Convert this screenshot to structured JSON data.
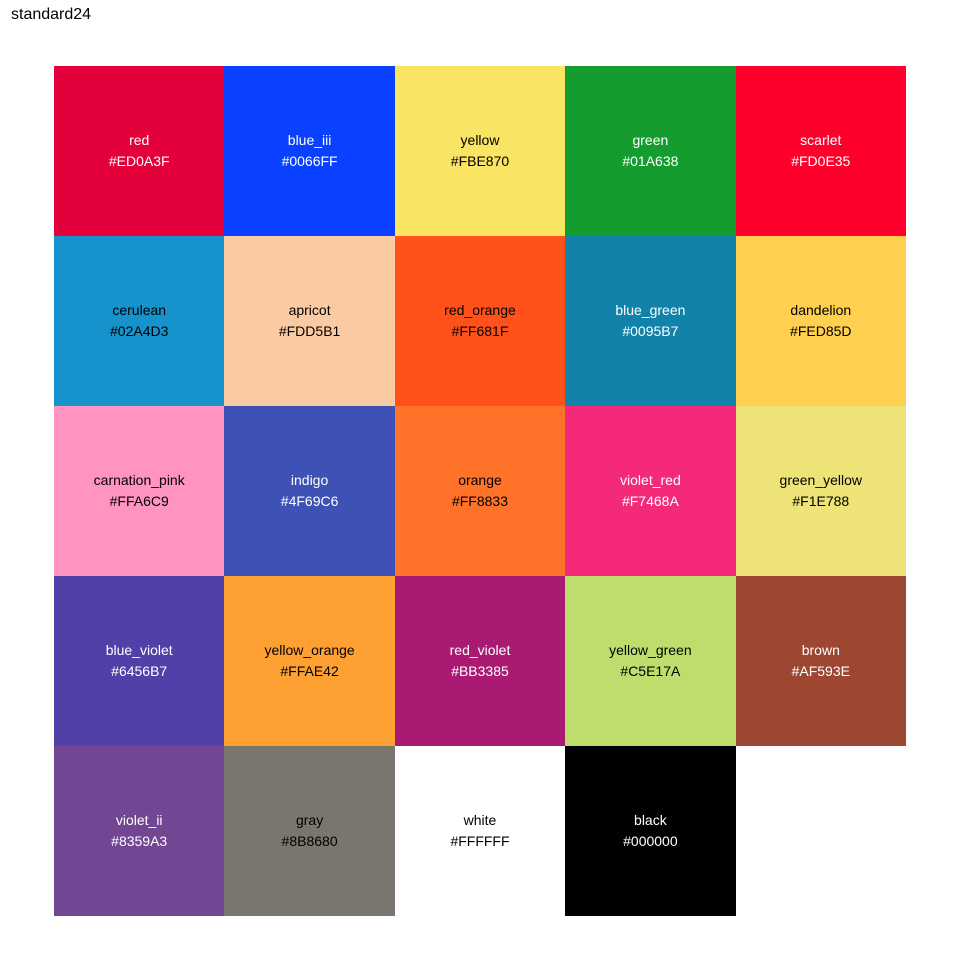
{
  "title": "standard24",
  "chart_data": {
    "type": "table",
    "title": "standard24",
    "columns": 5,
    "tiles": [
      {
        "name": "red",
        "hex": "#ED0A3F",
        "fill": "#E4003A",
        "text": "#FFFFFF"
      },
      {
        "name": "blue_iii",
        "hex": "#0066FF",
        "fill": "#0A40FF",
        "text": "#FFFFFF"
      },
      {
        "name": "yellow",
        "hex": "#FBE870",
        "fill": "#F9E464",
        "text": "#000000"
      },
      {
        "name": "green",
        "hex": "#01A638",
        "fill": "#159C2E",
        "text": "#FFFFFF"
      },
      {
        "name": "scarlet",
        "hex": "#FD0E35",
        "fill": "#FF002C",
        "text": "#FFFFFF"
      },
      {
        "name": "cerulean",
        "hex": "#02A4D3",
        "fill": "#1692CC",
        "text": "#000000"
      },
      {
        "name": "apricot",
        "hex": "#FDD5B1",
        "fill": "#FACBA3",
        "text": "#000000"
      },
      {
        "name": "red_orange",
        "hex": "#FF681F",
        "fill": "#FF5119",
        "text": "#000000"
      },
      {
        "name": "blue_green",
        "hex": "#0095B7",
        "fill": "#1183AA",
        "text": "#FFFFFF"
      },
      {
        "name": "dandelion",
        "hex": "#FED85D",
        "fill": "#FFD04F",
        "text": "#000000"
      },
      {
        "name": "carnation_pink",
        "hex": "#FFA6C9",
        "fill": "#FF93C2",
        "text": "#000000"
      },
      {
        "name": "indigo",
        "hex": "#4F69C6",
        "fill": "#3E52B6",
        "text": "#FFFFFF"
      },
      {
        "name": "orange",
        "hex": "#FF8833",
        "fill": "#FF7229",
        "text": "#000000"
      },
      {
        "name": "violet_red",
        "hex": "#F7468A",
        "fill": "#F4297A",
        "text": "#FFFFFF"
      },
      {
        "name": "green_yellow",
        "hex": "#F1E788",
        "fill": "#EEE376",
        "text": "#000000"
      },
      {
        "name": "blue_violet",
        "hex": "#6456B7",
        "fill": "#5140A7",
        "text": "#FFFFFF"
      },
      {
        "name": "yellow_orange",
        "hex": "#FFAE42",
        "fill": "#FFA033",
        "text": "#000000"
      },
      {
        "name": "red_violet",
        "hex": "#BB3385",
        "fill": "#A91A73",
        "text": "#FFFFFF"
      },
      {
        "name": "yellow_green",
        "hex": "#C5E17A",
        "fill": "#BDDE6C",
        "text": "#000000"
      },
      {
        "name": "brown",
        "hex": "#AF593E",
        "fill": "#9D4631",
        "text": "#FFFFFF"
      },
      {
        "name": "violet_ii",
        "hex": "#8359A3",
        "fill": "#714692",
        "text": "#FFFFFF"
      },
      {
        "name": "gray",
        "hex": "#8B8680",
        "fill": "#7A756E",
        "text": "#000000"
      },
      {
        "name": "white",
        "hex": "#FFFFFF",
        "fill": "#FFFFFF",
        "text": "#000000"
      },
      {
        "name": "black",
        "hex": "#000000",
        "fill": "#000000",
        "text": "#FFFFFF"
      }
    ]
  }
}
